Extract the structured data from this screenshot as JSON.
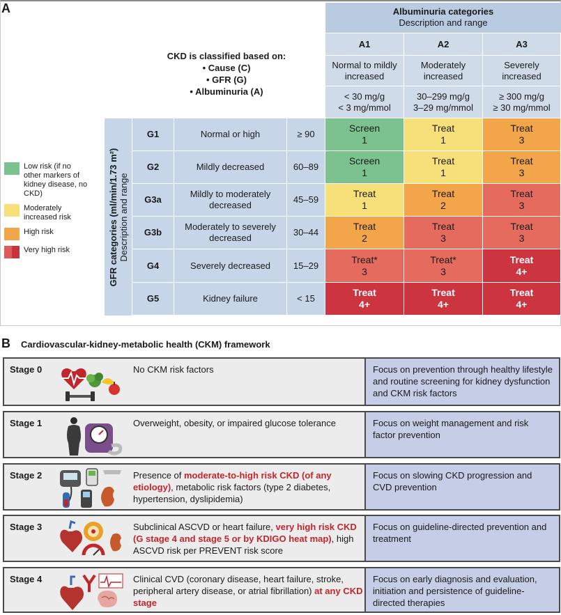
{
  "panel_a": {
    "letter": "A",
    "classification": {
      "heading": "CKD is classified based on:",
      "bullets": [
        "• Cause (C)",
        "• GFR (G)",
        "• Albuminuria (A)"
      ]
    },
    "albuminuria": {
      "title": "Albuminuria categories",
      "subtitle": "Description and range",
      "columns": [
        {
          "code": "A1",
          "desc": "Normal to mildly increased",
          "range1": "< 30 mg/g",
          "range2": "< 3 mg/mmol"
        },
        {
          "code": "A2",
          "desc": "Moderately increased",
          "range1": "30–299 mg/g",
          "range2": "3–29 mg/mmol"
        },
        {
          "code": "A3",
          "desc": "Severely increased",
          "range1": "≥ 300 mg/g",
          "range2": "≥ 30 mg/mmol"
        }
      ]
    },
    "gfr_axis": {
      "title": "GFR categories (ml/min/1.73 m²)",
      "subtitle": "Description and range"
    },
    "rows": [
      {
        "code": "G1",
        "desc": "Normal or high",
        "range": "≥ 90",
        "cells": [
          {
            "action": "Screen",
            "freq": "1",
            "risk": "low"
          },
          {
            "action": "Treat",
            "freq": "1",
            "risk": "moderate"
          },
          {
            "action": "Treat",
            "freq": "3",
            "risk": "high"
          }
        ]
      },
      {
        "code": "G2",
        "desc": "Mildly decreased",
        "range": "60–89",
        "cells": [
          {
            "action": "Screen",
            "freq": "1",
            "risk": "low"
          },
          {
            "action": "Treat",
            "freq": "1",
            "risk": "moderate"
          },
          {
            "action": "Treat",
            "freq": "3",
            "risk": "high"
          }
        ]
      },
      {
        "code": "G3a",
        "desc": "Mildly to moderately decreased",
        "range": "45–59",
        "cells": [
          {
            "action": "Treat",
            "freq": "1",
            "risk": "moderate"
          },
          {
            "action": "Treat",
            "freq": "2",
            "risk": "high"
          },
          {
            "action": "Treat",
            "freq": "3",
            "risk": "veryhigh"
          }
        ]
      },
      {
        "code": "G3b",
        "desc": "Moderately to severely decreased",
        "range": "30–44",
        "cells": [
          {
            "action": "Treat",
            "freq": "2",
            "risk": "high"
          },
          {
            "action": "Treat",
            "freq": "3",
            "risk": "veryhigh"
          },
          {
            "action": "Treat",
            "freq": "3",
            "risk": "veryhigh"
          }
        ]
      },
      {
        "code": "G4",
        "desc": "Severely decreased",
        "range": "15–29",
        "cells": [
          {
            "action": "Treat*",
            "freq": "3",
            "risk": "veryhigh"
          },
          {
            "action": "Treat*",
            "freq": "3",
            "risk": "veryhigh"
          },
          {
            "action": "Treat",
            "freq": "4+",
            "risk": "veryhigh_dark"
          }
        ]
      },
      {
        "code": "G5",
        "desc": "Kidney failure",
        "range": "< 15",
        "cells": [
          {
            "action": "Treat",
            "freq": "4+",
            "risk": "veryhigh_dark"
          },
          {
            "action": "Treat",
            "freq": "4+",
            "risk": "veryhigh_dark"
          },
          {
            "action": "Treat",
            "freq": "4+",
            "risk": "veryhigh_dark"
          }
        ]
      }
    ],
    "legend": [
      {
        "label": "Low risk (if no other markers of kidney disease, no CKD)",
        "color": "#7cc28f"
      },
      {
        "label": "Moderately increased risk",
        "color": "#f7e07a"
      },
      {
        "label": "High risk",
        "color": "#f3a54a"
      },
      {
        "label": "Very high risk",
        "color": "#e05a5a",
        "color2": "#c8323a"
      }
    ],
    "colors": {
      "low": "#7cc28f",
      "moderate": "#f7e07a",
      "high": "#f3a54a",
      "veryhigh": "#e66b5f",
      "veryhigh_dark": "#cc3440"
    }
  },
  "panel_b": {
    "letter": "B",
    "title": "Cardiovascular-kidney-metabolic health (CKM) framework",
    "stages": [
      {
        "name": "Stage 0",
        "icon": "heart-food-dumbbell-icon",
        "desc": [
          {
            "t": "No CKM risk factors",
            "red": false
          }
        ],
        "focus": "Focus on prevention through healthy lifestyle and routine screening for kidney dysfunction and CKM risk factors"
      },
      {
        "name": "Stage 1",
        "icon": "body-scale-tape-icon",
        "desc": [
          {
            "t": "Overweight, obesity, or impaired glucose tolerance",
            "red": false
          }
        ],
        "focus": "Focus on weight management and risk factor prevention"
      },
      {
        "name": "Stage 2",
        "icon": "bp-glucose-kidney-icon",
        "desc": [
          {
            "t": "Presence of ",
            "red": false
          },
          {
            "t": "moderate-to-high risk CKD (of any etiology)",
            "red": true
          },
          {
            "t": ", metabolic risk factors (type 2 diabetes, hypertension, dyslipidemia)",
            "red": false
          }
        ],
        "focus": "Focus on slowing CKD progression and CVD prevention"
      },
      {
        "name": "Stage 3",
        "icon": "heart-artery-gauge-kidney-icon",
        "desc": [
          {
            "t": "Subclinical ASCVD or heart failure, ",
            "red": false
          },
          {
            "t": "very high risk CKD (G stage 4 and stage 5 or by KDIGO heat map)",
            "red": true
          },
          {
            "t": ", high ASCVD risk per PREVENT risk score",
            "red": false
          }
        ],
        "focus": "Focus on guideline-directed prevention and treatment"
      },
      {
        "name": "Stage 4",
        "icon": "heart-ecg-brain-icon",
        "desc": [
          {
            "t": "Clinical CVD (coronary disease, heart failure, stroke, peripheral artery disease, or atrial fibrillation) ",
            "red": false
          },
          {
            "t": "at any CKD stage",
            "red": true
          }
        ],
        "focus": "Focus on early diagnosis and evaluation, initiation and persistence of guideline-directed therapies"
      }
    ]
  }
}
